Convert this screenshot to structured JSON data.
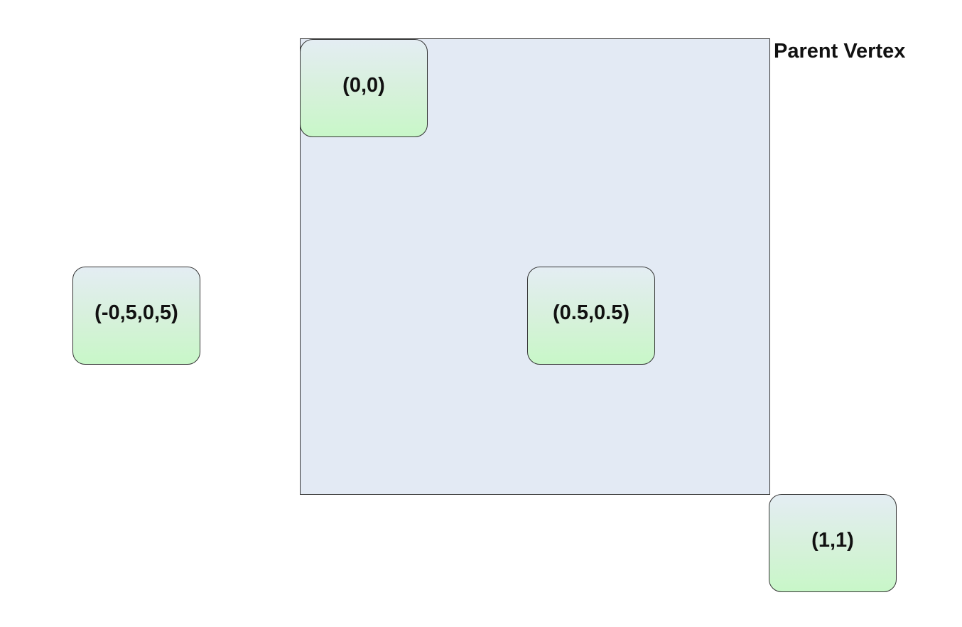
{
  "parent": {
    "label": "Parent Vertex"
  },
  "children": [
    {
      "label": "(0,0)"
    },
    {
      "label": "(0.5,0.5)"
    },
    {
      "label": "(-0,5,0,5)"
    },
    {
      "label": "(1,1)"
    }
  ],
  "colors": {
    "parent_fill": "#e3eaf4",
    "child_fill_top": "#e4edf3",
    "child_fill_bottom": "#c8f7c8",
    "border": "#333333"
  }
}
